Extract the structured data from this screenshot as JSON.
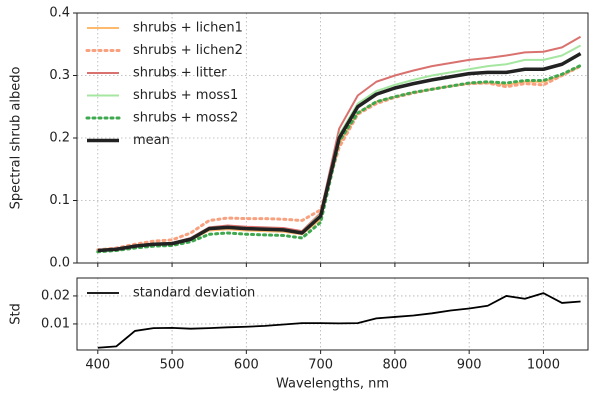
{
  "chart_data": [
    {
      "type": "line",
      "ylabel": "Spectral shrub albedo",
      "x": [
        400,
        425,
        450,
        475,
        500,
        525,
        550,
        575,
        600,
        625,
        650,
        675,
        700,
        725,
        750,
        775,
        800,
        825,
        850,
        875,
        900,
        925,
        950,
        975,
        1000,
        1025,
        1050
      ],
      "xlim": [
        372,
        1060
      ],
      "xticks": [
        400,
        500,
        600,
        700,
        800,
        900,
        1000
      ],
      "ylim": [
        0,
        0.4
      ],
      "yticks": [
        {
          "value": 0,
          "label": "0.0"
        },
        0.1,
        0.2,
        0.3,
        0.4
      ],
      "grid": true,
      "legend": "upper left",
      "series": [
        {
          "name": "shrubs + lichen1",
          "color": "#fdb96e",
          "linestyle": "solid",
          "width": 2,
          "values": [
            0.019,
            0.021,
            0.026,
            0.029,
            0.03,
            0.037,
            0.052,
            0.054,
            0.052,
            0.051,
            0.05,
            0.046,
            0.07,
            0.19,
            0.24,
            0.258,
            0.266,
            0.273,
            0.278,
            0.283,
            0.287,
            0.288,
            0.285,
            0.29,
            0.29,
            0.3,
            0.315
          ]
        },
        {
          "name": "shrubs + lichen2",
          "color": "#f9a07e",
          "linestyle": "dotted",
          "width": 3,
          "values": [
            0.021,
            0.024,
            0.03,
            0.035,
            0.037,
            0.048,
            0.068,
            0.072,
            0.071,
            0.071,
            0.07,
            0.068,
            0.085,
            0.185,
            0.238,
            0.255,
            0.265,
            0.272,
            0.278,
            0.283,
            0.287,
            0.288,
            0.282,
            0.287,
            0.285,
            0.3,
            0.315
          ]
        },
        {
          "name": "shrubs + litter",
          "color": "#d9726f",
          "linestyle": "solid",
          "width": 2,
          "values": [
            0.02,
            0.023,
            0.028,
            0.031,
            0.032,
            0.04,
            0.057,
            0.06,
            0.058,
            0.057,
            0.056,
            0.051,
            0.08,
            0.215,
            0.268,
            0.29,
            0.3,
            0.308,
            0.315,
            0.32,
            0.325,
            0.328,
            0.332,
            0.337,
            0.338,
            0.345,
            0.362
          ]
        },
        {
          "name": "shrubs + moss1",
          "color": "#a5e6a0",
          "linestyle": "solid",
          "width": 2,
          "values": [
            0.02,
            0.022,
            0.027,
            0.03,
            0.031,
            0.039,
            0.056,
            0.058,
            0.056,
            0.055,
            0.054,
            0.049,
            0.078,
            0.205,
            0.255,
            0.275,
            0.285,
            0.293,
            0.3,
            0.305,
            0.31,
            0.315,
            0.318,
            0.325,
            0.325,
            0.332,
            0.348
          ]
        },
        {
          "name": "shrubs + moss2",
          "color": "#3ea84e",
          "linestyle": "dotted",
          "width": 3,
          "values": [
            0.018,
            0.02,
            0.024,
            0.027,
            0.028,
            0.034,
            0.046,
            0.048,
            0.046,
            0.045,
            0.044,
            0.04,
            0.065,
            0.195,
            0.24,
            0.258,
            0.266,
            0.273,
            0.278,
            0.283,
            0.288,
            0.29,
            0.288,
            0.292,
            0.292,
            0.302,
            0.316
          ]
        },
        {
          "name": "mean",
          "color": "#222222",
          "linestyle": "solid",
          "width": 3.5,
          "values": [
            0.02,
            0.022,
            0.027,
            0.03,
            0.031,
            0.038,
            0.055,
            0.057,
            0.055,
            0.054,
            0.053,
            0.048,
            0.075,
            0.2,
            0.25,
            0.27,
            0.28,
            0.287,
            0.293,
            0.298,
            0.303,
            0.305,
            0.305,
            0.31,
            0.31,
            0.318,
            0.335
          ]
        }
      ]
    },
    {
      "type": "line",
      "ylabel": "Std",
      "xlabel": "Wavelengths, nm",
      "x": [
        400,
        425,
        450,
        475,
        500,
        525,
        550,
        575,
        600,
        625,
        650,
        675,
        700,
        725,
        750,
        775,
        800,
        825,
        850,
        875,
        900,
        925,
        950,
        975,
        1000,
        1025,
        1050
      ],
      "xlim": [
        372,
        1060
      ],
      "xticks": [
        400,
        500,
        600,
        700,
        800,
        900,
        1000
      ],
      "ylim": [
        0.0007,
        0.0264
      ],
      "yticks": [
        0.01,
        0.02
      ],
      "grid": true,
      "legend": "upper left",
      "series": [
        {
          "name": "standard deviation",
          "color": "#000000",
          "linestyle": "solid",
          "width": 1.8,
          "values": [
            0.0015,
            0.002,
            0.0075,
            0.0085,
            0.0086,
            0.0083,
            0.0085,
            0.0088,
            0.009,
            0.0093,
            0.0098,
            0.0103,
            0.0103,
            0.0102,
            0.0103,
            0.012,
            0.0125,
            0.013,
            0.0138,
            0.0148,
            0.0155,
            0.0165,
            0.02,
            0.019,
            0.021,
            0.0175,
            0.018
          ]
        }
      ]
    }
  ]
}
